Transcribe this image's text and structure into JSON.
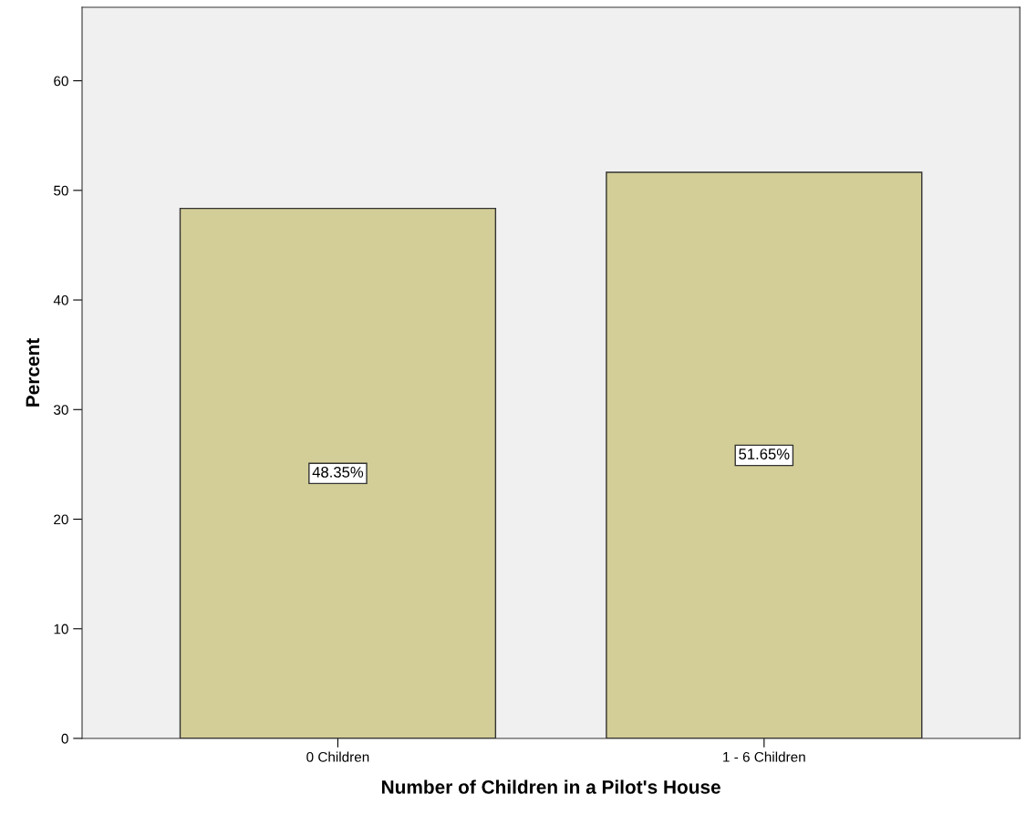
{
  "chart_data": {
    "type": "bar",
    "xlabel": "Number of Children in a Pilot's House",
    "ylabel": "Percent",
    "categories": [
      "0 Children",
      "1 - 6 Children"
    ],
    "values": [
      48.35,
      51.65
    ],
    "value_labels": [
      "48.35%",
      "51.65%"
    ],
    "color": "#d3ce97",
    "ylim": [
      0,
      66.7
    ],
    "yticks": [
      0,
      10,
      20,
      30,
      40,
      50,
      60
    ],
    "grid": false
  }
}
